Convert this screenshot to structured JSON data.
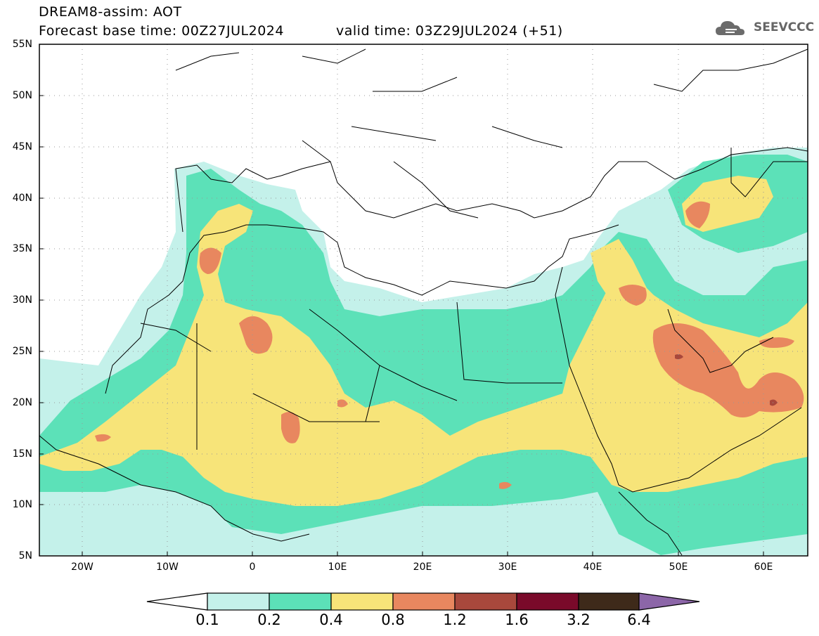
{
  "header": {
    "title": "DREAM8-assim: AOT",
    "base_time": "Forecast base time: 00Z27JUL2024",
    "valid_time": "valid time: 03Z29JUL2024 (+51)"
  },
  "logo": {
    "text": "SEEVCCC",
    "icon": "cloud-icon"
  },
  "map": {
    "lat_labels": [
      "55N",
      "50N",
      "45N",
      "40N",
      "35N",
      "30N",
      "25N",
      "20N",
      "15N",
      "10N",
      "5N"
    ],
    "lon_labels": [
      "20W",
      "10W",
      "0",
      "10E",
      "20E",
      "30E",
      "40E",
      "50E",
      "60E"
    ],
    "lon_range": [
      -25,
      65
    ],
    "lat_range": [
      5,
      55
    ]
  },
  "legend": {
    "levels": [
      "0.1",
      "0.2",
      "0.4",
      "0.8",
      "1.2",
      "1.6",
      "3.2",
      "6.4"
    ],
    "colors": [
      "#c4f1ea",
      "#5ce1b8",
      "#f7e479",
      "#e8875f",
      "#a8483c",
      "#7a0a2a",
      "#3e2a1a",
      "#8c66a8"
    ]
  }
}
